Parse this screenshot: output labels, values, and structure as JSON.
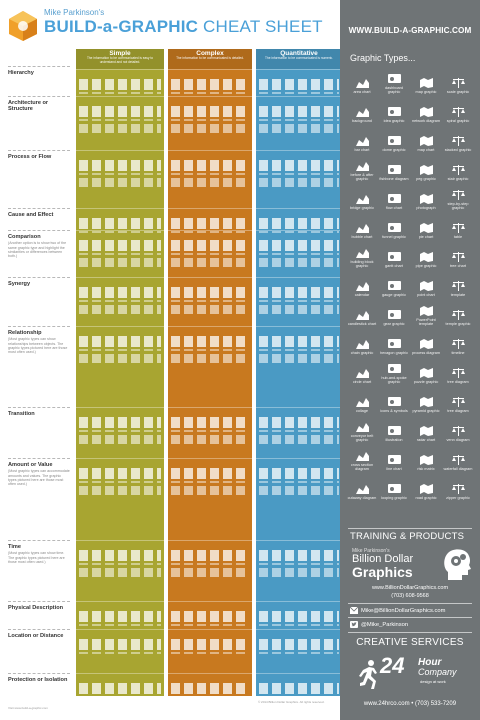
{
  "header": {
    "byline": "Mike Parkinson's",
    "title_main": "BUILD-a-GRAPHIC",
    "title_thin": "CHEAT SHEET"
  },
  "columns": [
    {
      "title": "Simple",
      "subtitle": "The information to be communicated is easy to understand and not detailed.",
      "color": "#a8a531"
    },
    {
      "title": "Complex",
      "subtitle": "The information to be communicated is detailed.",
      "color": "#c8791f"
    },
    {
      "title": "Quantitative",
      "subtitle": "The information to be communicated is numeric.",
      "color": "#4a9ac4"
    }
  ],
  "categories": [
    {
      "name": "Hierarchy",
      "desc": ""
    },
    {
      "name": "Architecture or Structure",
      "desc": ""
    },
    {
      "name": "Process or Flow",
      "desc": ""
    },
    {
      "name": "Cause and Effect",
      "desc": ""
    },
    {
      "name": "Comparison",
      "desc": "(Another option is to show two of the same graphic type and highlight the similarities or differences between both.)"
    },
    {
      "name": "Synergy",
      "desc": ""
    },
    {
      "name": "Relationship",
      "desc": "(Most graphic types can show relationships between objects. The graphic types pictured here are those most often used.)"
    },
    {
      "name": "Transition",
      "desc": ""
    },
    {
      "name": "Amount or Value",
      "desc": "(Most graphic types can accommodate amounts and values. The graphic types pictured here are those most often used.)"
    },
    {
      "name": "Time",
      "desc": "(Most graphic types can show time. The graphic types pictured here are those most often used.)"
    },
    {
      "name": "Physical Description",
      "desc": ""
    },
    {
      "name": "Location or Distance",
      "desc": ""
    },
    {
      "name": "Protection or Isolation",
      "desc": ""
    }
  ],
  "sidebar": {
    "url": "WWW.BUILD-A-GRAPHIC.COM",
    "types_title": "Graphic Types...",
    "types": [
      {
        "label": "area chart",
        "icon": "area-chart-icon"
      },
      {
        "label": "dashboard graphic",
        "icon": "dashboard-icon"
      },
      {
        "label": "map graphic",
        "icon": "map-icon"
      },
      {
        "label": "scale graphic",
        "icon": "scale-icon"
      },
      {
        "label": "background",
        "icon": "background-icon"
      },
      {
        "label": "idea graphic",
        "icon": "idea-icon"
      },
      {
        "label": "network diagram",
        "icon": "network-icon"
      },
      {
        "label": "spiral graphic",
        "icon": "spiral-icon"
      },
      {
        "label": "bar chart",
        "icon": "bar-chart-icon"
      },
      {
        "label": "dome graphic",
        "icon": "dome-icon"
      },
      {
        "label": "map chart",
        "icon": "map-chart-icon"
      },
      {
        "label": "stacked graphic",
        "icon": "stacked-icon"
      },
      {
        "label": "before & after graphic",
        "icon": "before-after-icon"
      },
      {
        "label": "fishbone diagram",
        "icon": "fishbone-icon"
      },
      {
        "label": "peg graphic",
        "icon": "peg-icon"
      },
      {
        "label": "stair graphic",
        "icon": "stair-icon"
      },
      {
        "label": "bridge graphic",
        "icon": "bridge-icon"
      },
      {
        "label": "flow chart",
        "icon": "flow-chart-icon"
      },
      {
        "label": "photograph",
        "icon": "photograph-icon"
      },
      {
        "label": "step-by-step graphic",
        "icon": "step-by-step-icon"
      },
      {
        "label": "bubble chart",
        "icon": "bubble-chart-icon"
      },
      {
        "label": "funnel graphic",
        "icon": "funnel-icon"
      },
      {
        "label": "pie chart",
        "icon": "pie-chart-icon"
      },
      {
        "label": "table",
        "icon": "table-icon"
      },
      {
        "label": "building block graphic",
        "icon": "building-block-icon"
      },
      {
        "label": "gantt chart",
        "icon": "gantt-icon"
      },
      {
        "label": "pipe graphic",
        "icon": "pipe-icon"
      },
      {
        "label": "tree chart",
        "icon": "tree-chart-icon"
      },
      {
        "label": "calendar",
        "icon": "calendar-icon"
      },
      {
        "label": "gauge graphic",
        "icon": "gauge-icon"
      },
      {
        "label": "point chart",
        "icon": "point-chart-icon"
      },
      {
        "label": "template",
        "icon": "template-icon"
      },
      {
        "label": "candlestick chart",
        "icon": "candlestick-icon"
      },
      {
        "label": "gear graphic",
        "icon": "gear-icon"
      },
      {
        "label": "PowerPoint template",
        "icon": "powerpoint-icon"
      },
      {
        "label": "temple graphic",
        "icon": "temple-icon"
      },
      {
        "label": "chain graphic",
        "icon": "chain-icon"
      },
      {
        "label": "hexagon graphic",
        "icon": "hexagon-icon"
      },
      {
        "label": "process diagram",
        "icon": "process-icon"
      },
      {
        "label": "timeline",
        "icon": "timeline-icon"
      },
      {
        "label": "circle chart",
        "icon": "circle-chart-icon"
      },
      {
        "label": "hub-and-spoke graphic",
        "icon": "hub-spoke-icon"
      },
      {
        "label": "puzzle graphic",
        "icon": "puzzle-icon"
      },
      {
        "label": "tree diagram",
        "icon": "tree-diagram-icon"
      },
      {
        "label": "collage",
        "icon": "collage-icon"
      },
      {
        "label": "icons & symbols",
        "icon": "icons-symbols-icon"
      },
      {
        "label": "pyramid graphic",
        "icon": "pyramid-icon"
      },
      {
        "label": "tree diagram",
        "icon": "tree-diagram-2-icon"
      },
      {
        "label": "conveyor belt graphic",
        "icon": "conveyor-icon"
      },
      {
        "label": "illustration",
        "icon": "illustration-icon"
      },
      {
        "label": "radar chart",
        "icon": "radar-icon"
      },
      {
        "label": "venn diagram",
        "icon": "venn-icon"
      },
      {
        "label": "cross section diagram",
        "icon": "cross-section-icon"
      },
      {
        "label": "line chart",
        "icon": "line-chart-icon"
      },
      {
        "label": "risk matrix",
        "icon": "risk-matrix-icon"
      },
      {
        "label": "waterfall diagram",
        "icon": "waterfall-icon"
      },
      {
        "label": "cutaway diagram",
        "icon": "cutaway-icon"
      },
      {
        "label": "looping graphic",
        "icon": "looping-icon"
      },
      {
        "label": "road graphic",
        "icon": "road-icon"
      },
      {
        "label": "zipper graphic",
        "icon": "zipper-icon"
      }
    ],
    "training_title": "TRAINING & PRODUCTS",
    "bdg_name": "Mike Parkinson's",
    "bdg_line1": "Billion Dollar",
    "bdg_line2": "Graphics",
    "bdg_web": "www.BillionDollarGraphics.com",
    "bdg_phone": "(703) 608-9568",
    "email": "Mike@BillionDollarGraphics.com",
    "twitter": "@Mike_Parkinson",
    "creative_title": "CREATIVE SERVICES",
    "h24_num": "24",
    "h24_word": "Hour",
    "h24_word2": "Company",
    "h24_tag": "design at work",
    "h24_contact": "www.24hrco.com • (703) 533-7209"
  },
  "footer": {
    "copyright": "© 2014 Billion Dollar Graphics. All rights reserved.",
    "footnote": "Visit www.build-a-graphic.com"
  },
  "colors": {
    "simple": "#a8a531",
    "complex": "#c8791f",
    "quantitative": "#4a9ac4",
    "sidebar": "#6f7476",
    "brand": "#4aa0d8"
  }
}
